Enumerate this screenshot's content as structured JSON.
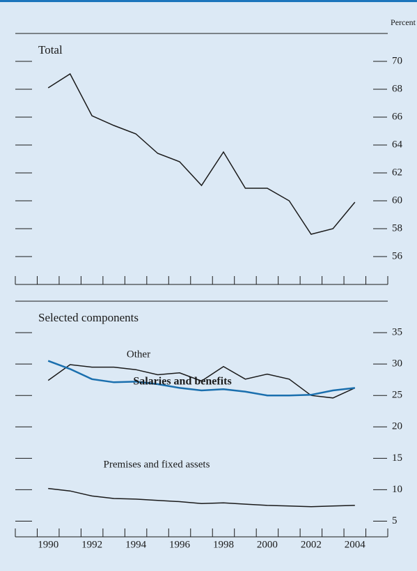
{
  "chart_data": [
    {
      "type": "line",
      "title": "Total",
      "y_label": "Percent",
      "x": [
        1990,
        1991,
        1992,
        1993,
        1994,
        1995,
        1996,
        1997,
        1998,
        1999,
        2000,
        2001,
        2002,
        2003,
        2004
      ],
      "values": [
        68.1,
        69.1,
        66.1,
        65.4,
        64.8,
        63.4,
        62.8,
        61.1,
        63.5,
        60.9,
        60.9,
        60.0,
        57.6,
        58.0,
        59.9
      ],
      "color": "#1a1a1a",
      "xlim": [
        1988.5,
        2005.5
      ],
      "ylim": [
        54,
        72
      ],
      "yticks": [
        56,
        58,
        60,
        62,
        64,
        66,
        68,
        70
      ]
    },
    {
      "type": "line",
      "title": "Selected components",
      "x": [
        1990,
        1991,
        1992,
        1993,
        1994,
        1995,
        1996,
        1997,
        1998,
        1999,
        2000,
        2001,
        2002,
        2003,
        2004
      ],
      "series": [
        {
          "name": "Other",
          "color": "#1a1a1a",
          "values": [
            27.4,
            29.9,
            29.5,
            29.5,
            29.1,
            28.3,
            28.6,
            27.3,
            29.6,
            27.6,
            28.4,
            27.6,
            25.0,
            24.6,
            26.2
          ]
        },
        {
          "name": "Salaries and benefits",
          "color": "#1a6fae",
          "values": [
            30.5,
            29.2,
            27.6,
            27.1,
            27.2,
            26.8,
            26.2,
            25.8,
            26.0,
            25.6,
            25.0,
            25.0,
            25.1,
            25.8,
            26.2
          ]
        },
        {
          "name": "Premises and fixed assets",
          "color": "#1a1a1a",
          "values": [
            10.2,
            9.8,
            9.0,
            8.6,
            8.5,
            8.3,
            8.1,
            7.8,
            7.9,
            7.7,
            7.5,
            7.4,
            7.3,
            7.4,
            7.5
          ]
        }
      ],
      "xlim": [
        1988.5,
        2005.5
      ],
      "ylim": [
        2.5,
        40
      ],
      "yticks": [
        5,
        10,
        15,
        20,
        25,
        30,
        35
      ],
      "xticks": [
        1990,
        1992,
        1994,
        1996,
        1998,
        2000,
        2002,
        2004
      ]
    }
  ]
}
